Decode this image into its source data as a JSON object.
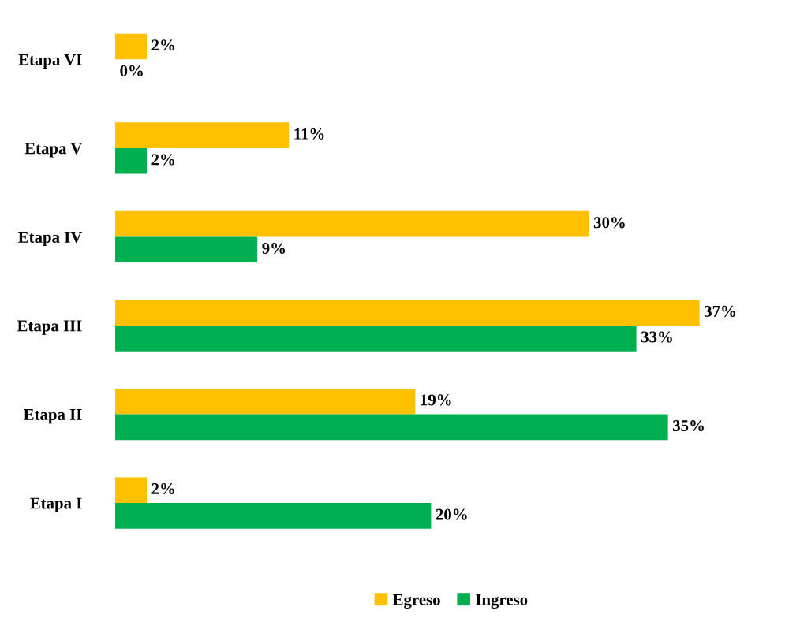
{
  "chart_data": {
    "type": "bar",
    "orientation": "horizontal",
    "categories": [
      "Etapa VI",
      "Etapa V",
      "Etapa IV",
      "Etapa III",
      "Etapa II",
      "Etapa I"
    ],
    "series": [
      {
        "name": "Egreso",
        "color": "#ffc000",
        "values": [
          2,
          11,
          30,
          37,
          19,
          2
        ],
        "value_labels": [
          "2%",
          "11%",
          "30%",
          "37%",
          "19%",
          "2%"
        ]
      },
      {
        "name": "Ingreso",
        "color": "#00b050",
        "values": [
          0,
          2,
          9,
          33,
          35,
          20
        ],
        "value_labels": [
          "0%",
          "2%",
          "9%",
          "33%",
          "35%",
          "20%"
        ]
      }
    ],
    "legend": "bottom",
    "grid": false
  }
}
